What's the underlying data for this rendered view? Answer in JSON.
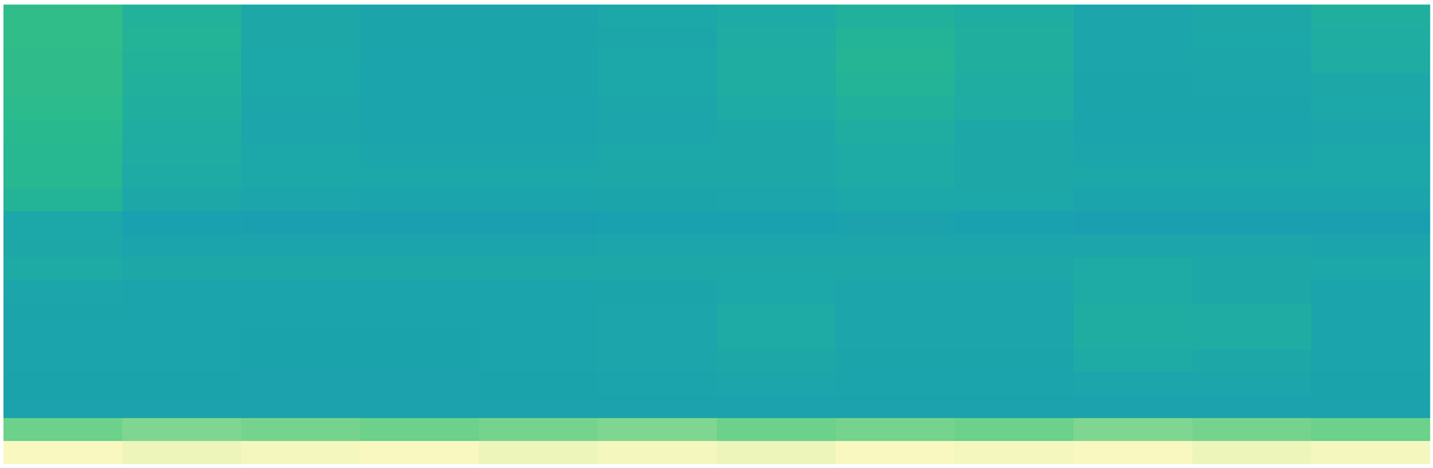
{
  "chart_data": {
    "type": "heatmap",
    "tick_labels": false,
    "cells": [
      [
        0.55,
        0.68,
        0.8,
        0.85,
        0.85,
        0.82,
        0.78,
        0.7,
        0.74,
        0.84,
        0.8,
        0.72
      ],
      [
        0.55,
        0.66,
        0.8,
        0.85,
        0.85,
        0.83,
        0.76,
        0.66,
        0.72,
        0.84,
        0.82,
        0.74
      ],
      [
        0.56,
        0.68,
        0.82,
        0.86,
        0.85,
        0.82,
        0.74,
        0.64,
        0.72,
        0.84,
        0.83,
        0.76
      ],
      [
        0.56,
        0.7,
        0.82,
        0.86,
        0.85,
        0.82,
        0.74,
        0.66,
        0.74,
        0.85,
        0.84,
        0.8
      ],
      [
        0.58,
        0.72,
        0.83,
        0.86,
        0.86,
        0.83,
        0.78,
        0.7,
        0.76,
        0.85,
        0.85,
        0.82
      ],
      [
        0.6,
        0.74,
        0.84,
        0.86,
        0.86,
        0.84,
        0.8,
        0.74,
        0.8,
        0.86,
        0.86,
        0.84
      ],
      [
        0.62,
        0.76,
        0.82,
        0.84,
        0.84,
        0.82,
        0.8,
        0.78,
        0.8,
        0.84,
        0.84,
        0.82
      ],
      [
        0.62,
        0.78,
        0.82,
        0.82,
        0.82,
        0.8,
        0.8,
        0.78,
        0.8,
        0.82,
        0.82,
        0.82
      ],
      [
        0.66,
        0.8,
        0.84,
        0.86,
        0.86,
        0.85,
        0.84,
        0.82,
        0.82,
        0.86,
        0.86,
        0.86
      ],
      [
        0.82,
        0.9,
        0.92,
        0.92,
        0.92,
        0.9,
        0.9,
        0.88,
        0.9,
        0.92,
        0.92,
        0.92
      ],
      [
        0.8,
        0.86,
        0.86,
        0.86,
        0.86,
        0.84,
        0.84,
        0.84,
        0.84,
        0.84,
        0.84,
        0.86
      ],
      [
        0.78,
        0.8,
        0.8,
        0.8,
        0.8,
        0.8,
        0.8,
        0.8,
        0.8,
        0.78,
        0.8,
        0.82
      ],
      [
        0.84,
        0.86,
        0.86,
        0.86,
        0.86,
        0.85,
        0.82,
        0.84,
        0.84,
        0.78,
        0.8,
        0.86
      ],
      [
        0.85,
        0.86,
        0.86,
        0.86,
        0.86,
        0.84,
        0.78,
        0.84,
        0.84,
        0.74,
        0.76,
        0.86
      ],
      [
        0.86,
        0.86,
        0.87,
        0.87,
        0.86,
        0.84,
        0.78,
        0.84,
        0.84,
        0.74,
        0.76,
        0.86
      ],
      [
        0.86,
        0.86,
        0.87,
        0.87,
        0.86,
        0.84,
        0.8,
        0.85,
        0.85,
        0.78,
        0.8,
        0.86
      ],
      [
        0.87,
        0.87,
        0.88,
        0.88,
        0.87,
        0.86,
        0.84,
        0.86,
        0.86,
        0.84,
        0.84,
        0.87
      ],
      [
        0.88,
        0.88,
        0.88,
        0.88,
        0.88,
        0.88,
        0.88,
        0.88,
        0.88,
        0.88,
        0.88,
        0.88
      ],
      [
        0.38,
        0.34,
        0.36,
        0.38,
        0.36,
        0.34,
        0.38,
        0.36,
        0.38,
        0.34,
        0.36,
        0.38
      ],
      [
        0.05,
        0.08,
        0.06,
        0.05,
        0.08,
        0.06,
        0.08,
        0.05,
        0.06,
        0.05,
        0.08,
        0.06
      ]
    ]
  }
}
